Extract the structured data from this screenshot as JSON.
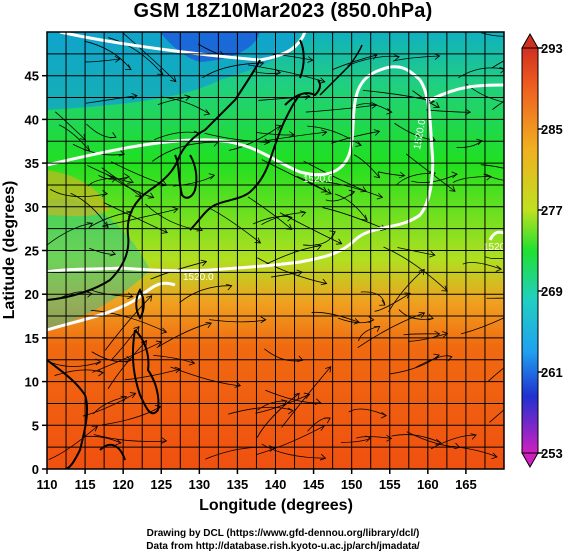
{
  "title": "GSM 18Z10Mar2023 (850.0hPa)",
  "x_axis": {
    "label": "Longitude (degrees)",
    "min": 110,
    "max": 170,
    "ticks": [
      "110",
      "115",
      "120",
      "125",
      "130",
      "135",
      "140",
      "145",
      "150",
      "155",
      "160",
      "165"
    ]
  },
  "y_axis": {
    "label": "Latitude  (degrees)",
    "min": 0,
    "max": 50,
    "ticks": [
      "0",
      "5",
      "10",
      "15",
      "20",
      "25",
      "30",
      "35",
      "40",
      "45"
    ]
  },
  "colorbar": {
    "min": 253,
    "max": 293,
    "ticks": [
      "293",
      "285",
      "277",
      "269",
      "261",
      "253"
    ]
  },
  "contour_labels": [
    "1520.0",
    "1520.0",
    "1520.0",
    "1520.0"
  ],
  "footer": {
    "line1": "Drawing by DCL (https://www.gfd-dennou.org/library/dcl/)",
    "line2": "Data from http://database.rish.kyoto-u.ac.jp/arch/jmadata/"
  },
  "colors": {
    "warm": "#f05a10",
    "mid": "#20e020",
    "cool": "#10d0d0",
    "cold": "#2040f0",
    "coast": "#000000",
    "contour": "#ffffff"
  }
}
